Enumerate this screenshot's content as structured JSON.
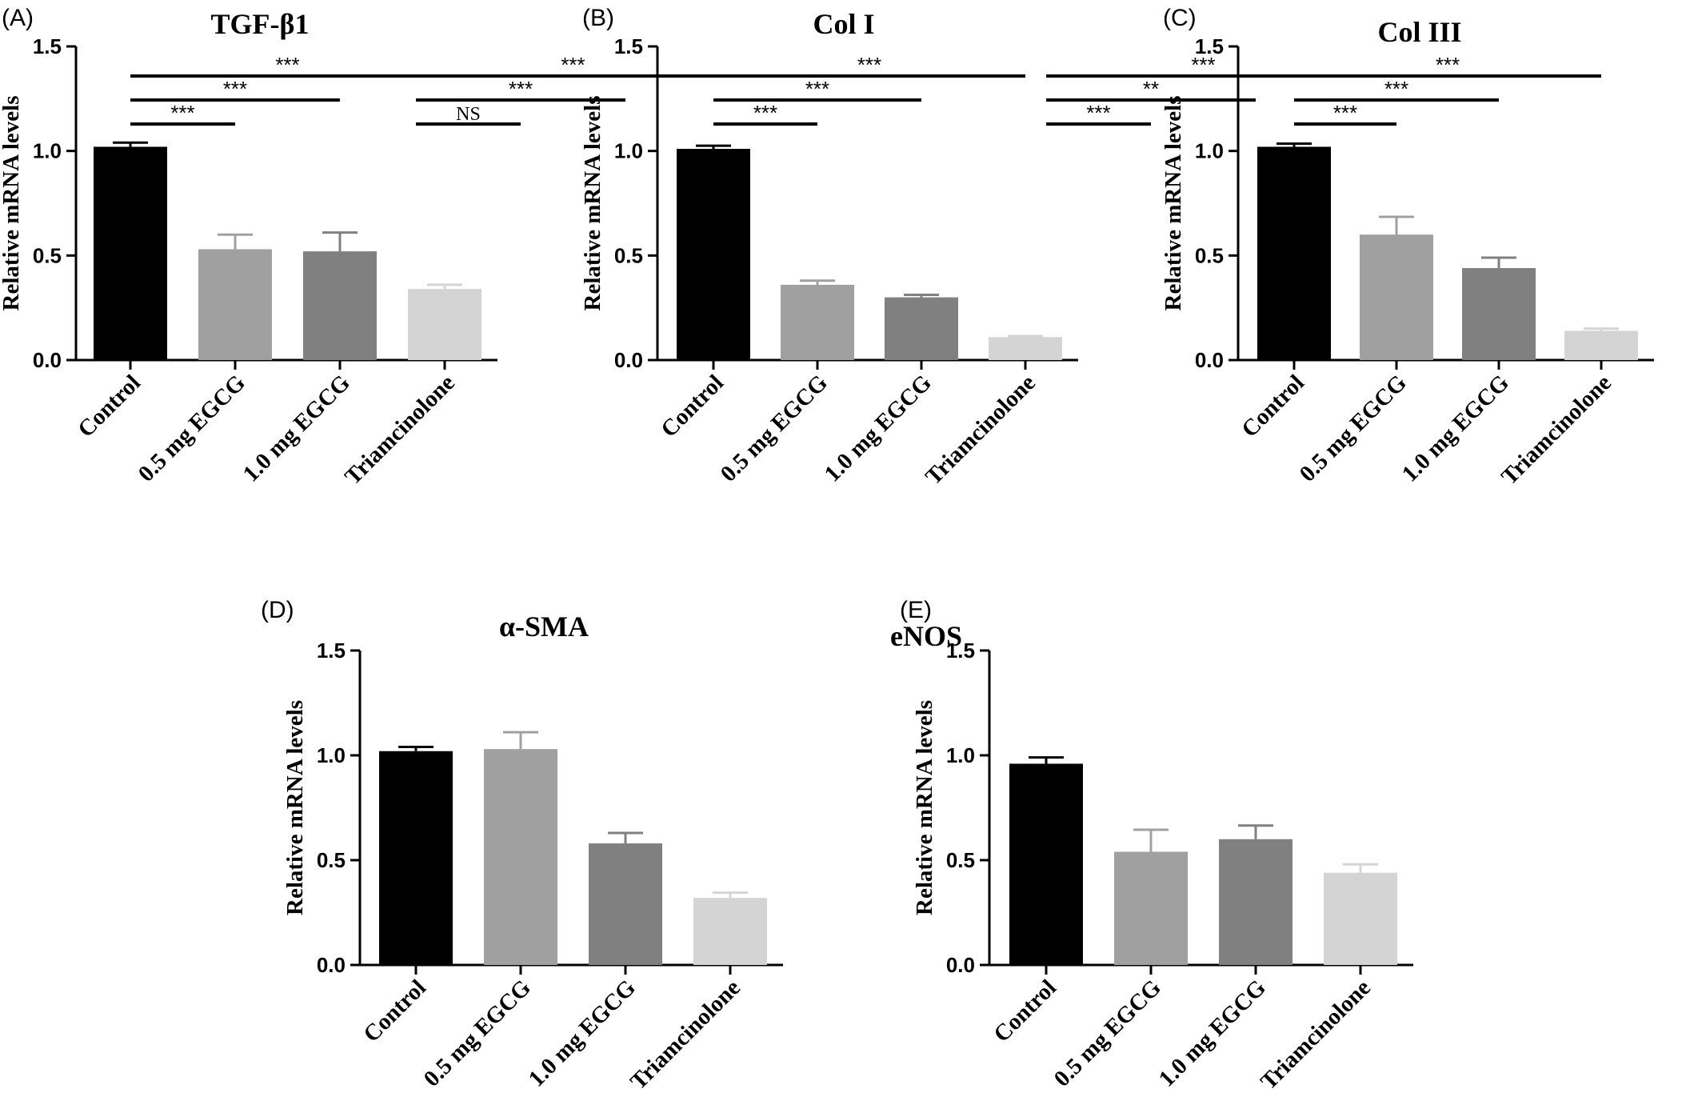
{
  "figure": {
    "categories": [
      "Control",
      "0.5 mg EGCG",
      "1.0 mg EGCG",
      "Triamcinolone"
    ],
    "bar_colors": [
      "#000000",
      "#a0a0a0",
      "#808080",
      "#d4d4d4"
    ],
    "ylabel": "Relative mRNA levels"
  },
  "chart_data": [
    {
      "panel": "(A)",
      "type": "bar",
      "title": "TGF-β1",
      "ylabel": "Relative mRNA levels",
      "categories": [
        "Control",
        "0.5 mg EGCG",
        "1.0 mg EGCG",
        "Triamcinolone"
      ],
      "values": [
        1.02,
        0.53,
        0.52,
        0.34
      ],
      "errors": [
        0.02,
        0.07,
        0.09,
        0.02
      ],
      "ylim": [
        0,
        1.5
      ],
      "yticks": [
        "0.0",
        "0.5",
        "1.0",
        "1.5"
      ],
      "significance": [
        {
          "from": 0,
          "to": 1,
          "label": "***"
        },
        {
          "from": 0,
          "to": 2,
          "label": "***"
        },
        {
          "from": 0,
          "to": 3,
          "label": "***"
        }
      ]
    },
    {
      "panel": "(B)",
      "type": "bar",
      "title": "Col I",
      "ylabel": "Relative mRNA levels",
      "categories": [
        "Control",
        "0.5 mg EGCG",
        "1.0 mg EGCG",
        "Triamcinolone"
      ],
      "values": [
        1.01,
        0.36,
        0.3,
        0.11
      ],
      "errors": [
        0.015,
        0.02,
        0.012,
        0.005
      ],
      "ylim": [
        0,
        1.5
      ],
      "yticks": [
        "0.0",
        "0.5",
        "1.0",
        "1.5"
      ],
      "significance": [
        {
          "from": 0,
          "to": 1,
          "label": "***"
        },
        {
          "from": 0,
          "to": 2,
          "label": "***"
        },
        {
          "from": 0,
          "to": 3,
          "label": "***"
        }
      ]
    },
    {
      "panel": "(C)",
      "type": "bar",
      "title": "Col III",
      "ylabel": "Relative mRNA levels",
      "categories": [
        "Control",
        "0.5 mg EGCG",
        "1.0 mg EGCG",
        "Triamcinolone"
      ],
      "values": [
        1.02,
        0.6,
        0.44,
        0.14
      ],
      "errors": [
        0.015,
        0.085,
        0.05,
        0.01
      ],
      "ylim": [
        0,
        1.5
      ],
      "yticks": [
        "0.0",
        "0.5",
        "1.0",
        "1.5"
      ],
      "significance": [
        {
          "from": 0,
          "to": 1,
          "label": "***"
        },
        {
          "from": 0,
          "to": 2,
          "label": "***"
        },
        {
          "from": 0,
          "to": 3,
          "label": "***"
        }
      ]
    },
    {
      "panel": "(D)",
      "type": "bar",
      "title": "α-SMA",
      "ylabel": "Relative mRNA levels",
      "categories": [
        "Control",
        "0.5 mg EGCG",
        "1.0 mg EGCG",
        "Triamcinolone"
      ],
      "values": [
        1.02,
        1.03,
        0.58,
        0.32
      ],
      "errors": [
        0.02,
        0.08,
        0.05,
        0.025
      ],
      "ylim": [
        0,
        1.5
      ],
      "yticks": [
        "0.0",
        "0.5",
        "1.0",
        "1.5"
      ],
      "significance": [
        {
          "from": 0,
          "to": 1,
          "label": "NS"
        },
        {
          "from": 0,
          "to": 2,
          "label": "***"
        },
        {
          "from": 0,
          "to": 3,
          "label": "***"
        }
      ]
    },
    {
      "panel": "(E)",
      "type": "bar",
      "title": "eNOS",
      "ylabel": "Relative mRNA levels",
      "categories": [
        "Control",
        "0.5 mg EGCG",
        "1.0 mg EGCG",
        "Triamcinolone"
      ],
      "values": [
        0.96,
        0.54,
        0.6,
        0.44
      ],
      "errors": [
        0.03,
        0.105,
        0.065,
        0.04
      ],
      "ylim": [
        0,
        1.5
      ],
      "yticks": [
        "0.0",
        "0.5",
        "1.0",
        "1.5"
      ],
      "significance": [
        {
          "from": 0,
          "to": 1,
          "label": "***"
        },
        {
          "from": 0,
          "to": 2,
          "label": "**"
        },
        {
          "from": 0,
          "to": 3,
          "label": "***"
        }
      ]
    }
  ]
}
